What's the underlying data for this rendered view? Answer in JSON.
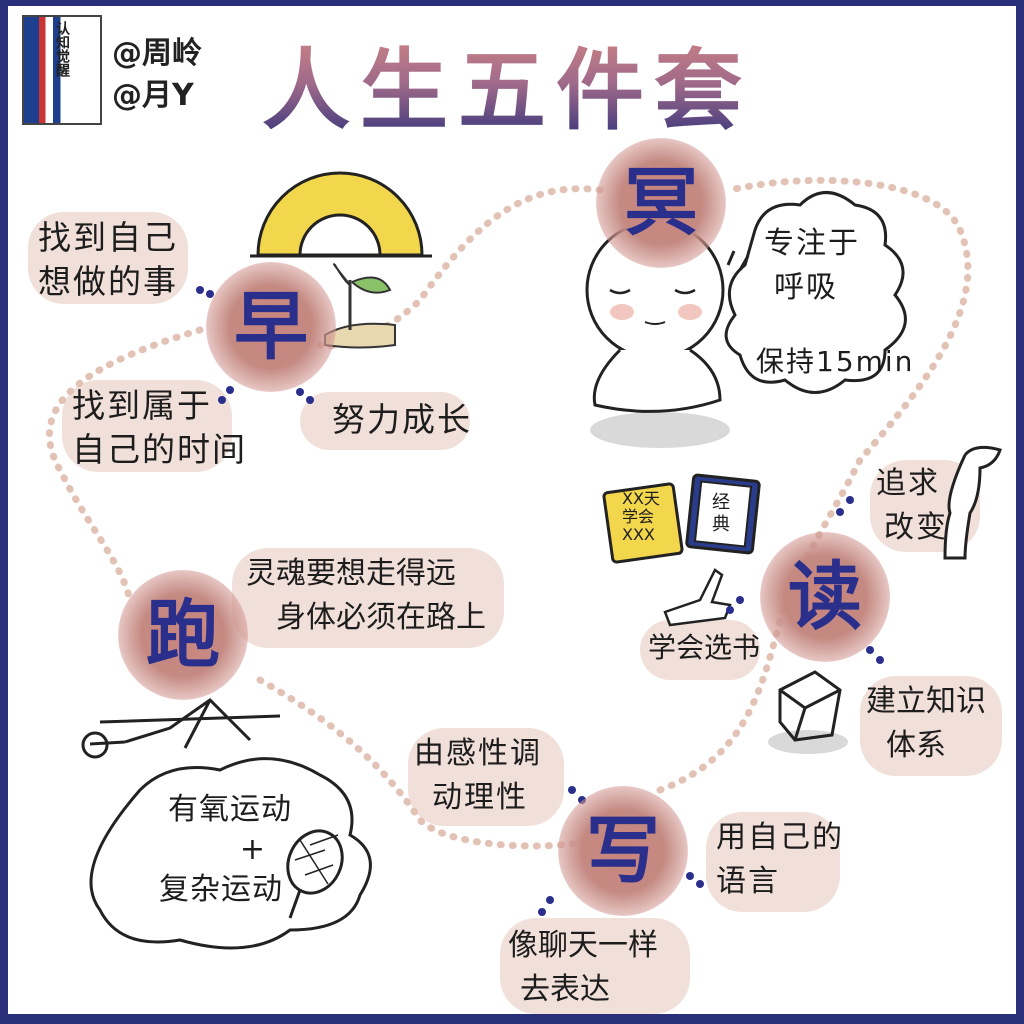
{
  "header": {
    "book_title": "认知觉醒",
    "authors": [
      "@周岭",
      "@月Y"
    ],
    "title": "人生五件套"
  },
  "pillars": [
    {
      "char": "早",
      "notes": [
        [
          "找到自己",
          "想做的事"
        ],
        [
          "找到属于",
          "自己的时间"
        ],
        [
          "努力成长"
        ]
      ]
    },
    {
      "char": "冥",
      "notes": [
        [
          "专注于",
          "呼吸"
        ],
        [
          "保持15min"
        ]
      ]
    },
    {
      "char": "读",
      "book_labels": [
        [
          "XX天",
          "学会",
          "XXX"
        ],
        [
          "经",
          "典"
        ]
      ],
      "notes": [
        [
          "追求",
          "改变"
        ],
        [
          "学会选书"
        ],
        [
          "建立知识",
          "体系"
        ]
      ]
    },
    {
      "char": "跑",
      "notes": [
        [
          "灵魂要想走得远",
          "身体必须在路上"
        ],
        [
          "有氧运动",
          "+",
          "复杂运动"
        ]
      ]
    },
    {
      "char": "写",
      "notes": [
        [
          "由感性调",
          "动理性"
        ],
        [
          "用自己的",
          "语言"
        ],
        [
          "像聊天一样",
          "去表达"
        ]
      ]
    }
  ],
  "colors": {
    "frame": "#2a2f7a",
    "pillar_text": "#2a2f8c",
    "pillar_bg": "#c9847d",
    "note_bg": "#f1e0da",
    "dots": "#e3c2b6",
    "sun": "#f2d64b"
  }
}
